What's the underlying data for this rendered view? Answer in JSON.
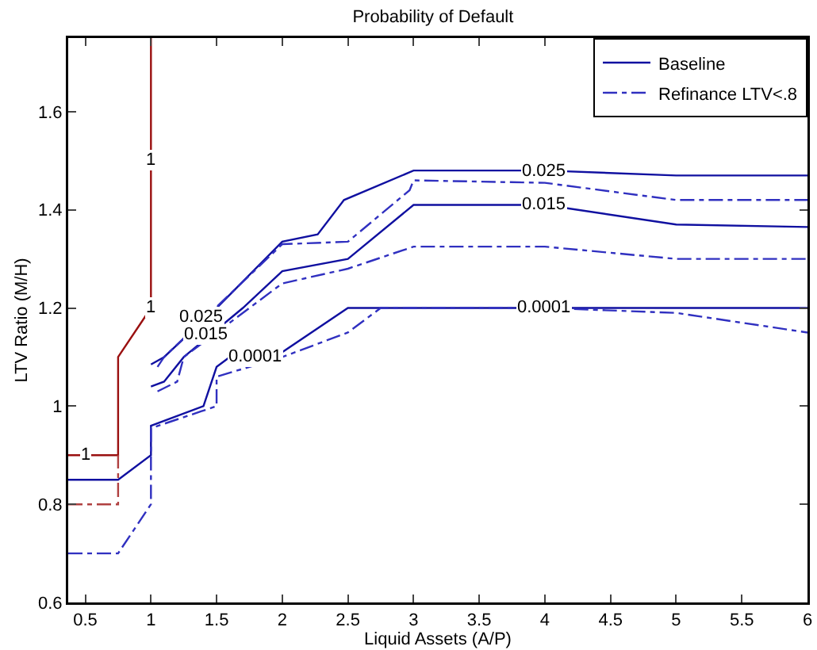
{
  "chart_data": {
    "type": "line",
    "title": "Probability of Default",
    "xlabel": "Liquid Assets (A/P)",
    "ylabel": "LTV Ratio (M/H)",
    "xlim": [
      0.37,
      6
    ],
    "xticks": [
      0.5,
      1,
      1.5,
      2,
      2.5,
      3,
      3.5,
      4,
      4.5,
      5,
      5.5,
      6
    ],
    "ylim": [
      0.6,
      1.75
    ],
    "yticks": [
      0.6,
      0.8,
      1,
      1.2,
      1.4,
      1.6
    ],
    "grid": false,
    "legend": "top right",
    "marker": "none",
    "series": [
      {
        "name": "Baseline",
        "color": "#1010a0",
        "line_style": "solid",
        "x": [
          1,
          1.1,
          1.5,
          2,
          2.27,
          2.47,
          3,
          4,
          5,
          6
        ],
        "values": [
          1.085,
          1.1,
          1.2,
          1.335,
          1.35,
          1.42,
          1.48,
          1.48,
          1.47,
          1.47
        ]
      },
      {
        "color": "#1010a0",
        "line_style": "solid",
        "x": [
          1,
          1.1,
          1.25,
          1.7,
          2,
          2.5,
          3,
          4,
          5,
          6
        ],
        "values": [
          1.04,
          1.05,
          1.1,
          1.2,
          1.275,
          1.3,
          1.41,
          1.41,
          1.37,
          1.365
        ]
      },
      {
        "color": "#1010a0",
        "line_style": "solid",
        "x": [
          0.37,
          0.75,
          1,
          1,
          1.4,
          1.5,
          1.6,
          2,
          2.5,
          3,
          4,
          5,
          6
        ],
        "values": [
          0.85,
          0.85,
          0.9,
          0.96,
          1.0,
          1.08,
          1.1,
          1.11,
          1.2,
          1.2,
          1.2,
          1.2,
          1.2
        ]
      },
      {
        "color": "#9a1010",
        "line_style": "solid",
        "x": [
          0.37,
          0.75,
          0.75,
          1,
          1
        ],
        "values": [
          0.9,
          0.9,
          1.1,
          1.2,
          1.75
        ]
      },
      {
        "name": "Refinance LTV<.8",
        "color": "#3030c0",
        "line_style": "dashed",
        "x": [
          1.05,
          1.1,
          2,
          2.5,
          2.97,
          3,
          4,
          5,
          6
        ],
        "values": [
          1.08,
          1.1,
          1.33,
          1.335,
          1.44,
          1.46,
          1.455,
          1.42,
          1.42
        ]
      },
      {
        "color": "#3030c0",
        "line_style": "dashed",
        "x": [
          1.05,
          1.2,
          1.25,
          1.7,
          2,
          2.5,
          3,
          4,
          5,
          6
        ],
        "values": [
          1.03,
          1.05,
          1.1,
          1.19,
          1.25,
          1.28,
          1.325,
          1.325,
          1.3,
          1.3
        ]
      },
      {
        "color": "#3030c0",
        "line_style": "dashed",
        "x": [
          0.37,
          0.75,
          1,
          1,
          1.5,
          1.5,
          2,
          2.5,
          2.75,
          4,
          5,
          6
        ],
        "values": [
          0.7,
          0.7,
          0.8,
          0.955,
          1.0,
          1.06,
          1.1,
          1.15,
          1.2,
          1.2,
          1.19,
          1.15
        ]
      },
      {
        "color": "#b04040",
        "line_style": "dashed",
        "x": [
          0.37,
          0.75,
          0.75
        ],
        "values": [
          0.8,
          0.8,
          0.9
        ]
      }
    ],
    "annotations": [
      {
        "text": "0.025",
        "x": 4,
        "y": 1.48
      },
      {
        "text": "0.015",
        "x": 4,
        "y": 1.41
      },
      {
        "text": "0.0001",
        "x": 4,
        "y": 1.2
      },
      {
        "text": "0.025",
        "x": 1.38,
        "y": 1.18
      },
      {
        "text": "0.015",
        "x": 1.42,
        "y": 1.145
      },
      {
        "text": "0.0001",
        "x": 1.8,
        "y": 1.1
      },
      {
        "text": "1",
        "x": 0.5,
        "y": 0.9
      },
      {
        "text": "1",
        "x": 1,
        "y": 1.2
      },
      {
        "text": "1",
        "x": 1,
        "y": 1.5
      }
    ]
  }
}
